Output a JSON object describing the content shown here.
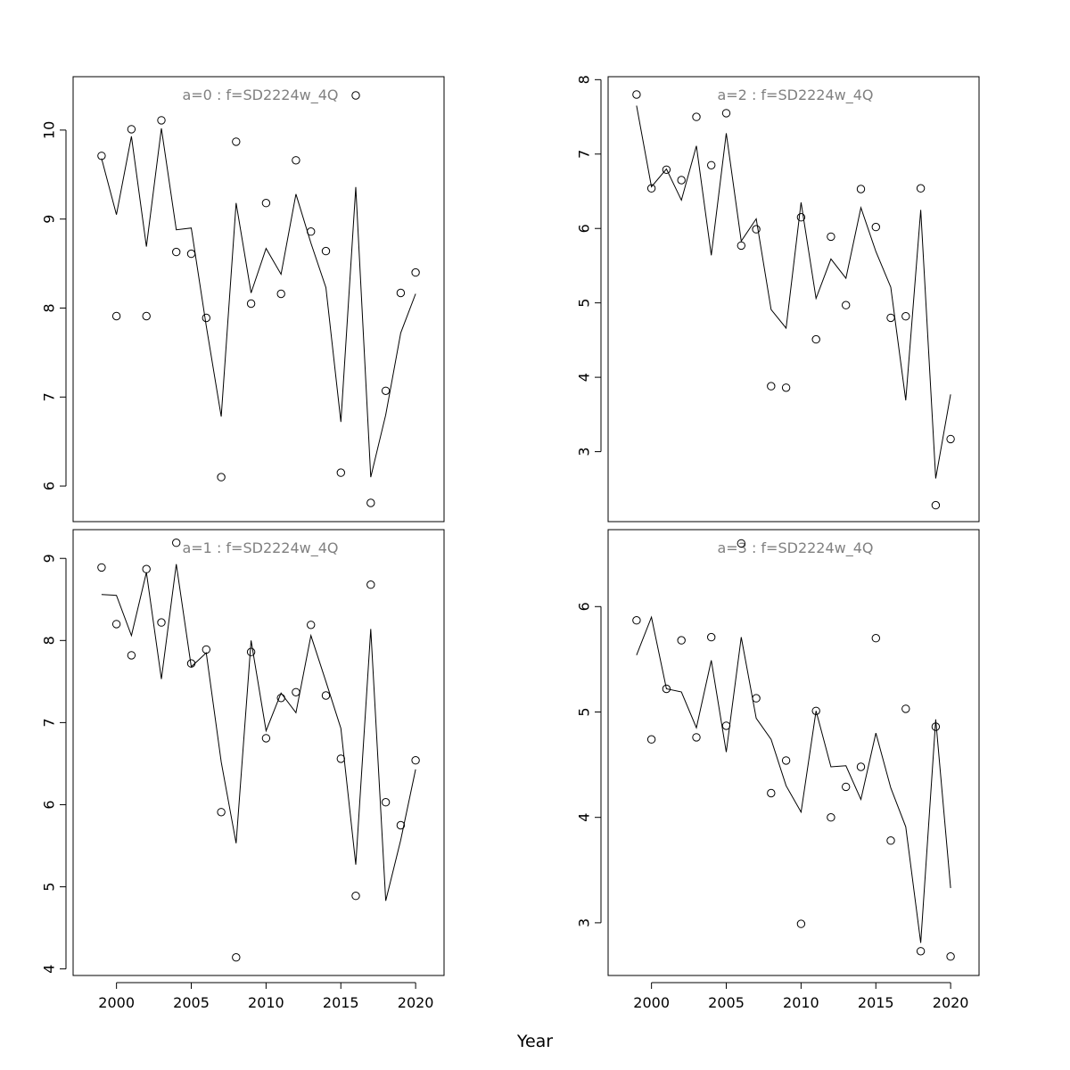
{
  "figure": {
    "xlabel": "Year"
  },
  "chart_data": [
    {
      "type": "line",
      "panel": "a0",
      "title": "a=0  :  f=SD2224w_4Q",
      "xlim": [
        1997.1,
        2021.9
      ],
      "ylim": [
        5.6,
        10.6
      ],
      "x_ticks": [
        2000,
        2005,
        2010,
        2015,
        2020
      ],
      "y_ticks": [
        6,
        7,
        8,
        9,
        10
      ],
      "show_x_ticks": false,
      "x": [
        1999,
        2000,
        2001,
        2002,
        2003,
        2004,
        2005,
        2006,
        2007,
        2008,
        2009,
        2010,
        2011,
        2012,
        2013,
        2014,
        2015,
        2016,
        2017,
        2018,
        2019,
        2020
      ],
      "series": [
        {
          "name": "",
          "style": "points",
          "values": [
            9.71,
            7.91,
            10.01,
            7.91,
            10.11,
            8.63,
            8.61,
            7.89,
            6.1,
            9.87,
            8.05,
            9.18,
            8.16,
            9.66,
            8.86,
            8.64,
            6.15,
            10.39,
            5.81,
            7.07,
            8.17,
            8.4
          ]
        },
        {
          "name": "",
          "style": "line",
          "values": [
            9.68,
            9.05,
            9.93,
            8.69,
            10.02,
            8.88,
            8.9,
            7.8,
            6.78,
            9.18,
            8.17,
            8.67,
            8.38,
            9.28,
            8.73,
            8.23,
            6.72,
            9.36,
            6.1,
            6.8,
            7.72,
            8.16
          ]
        }
      ]
    },
    {
      "type": "line",
      "panel": "a1",
      "title": "a=1  :  f=SD2224w_4Q",
      "xlim": [
        1997.1,
        2021.9
      ],
      "ylim": [
        3.92,
        9.35
      ],
      "x_ticks": [
        2000,
        2005,
        2010,
        2015,
        2020
      ],
      "y_ticks": [
        4,
        5,
        6,
        7,
        8,
        9
      ],
      "show_x_ticks": true,
      "x": [
        1999,
        2000,
        2001,
        2002,
        2003,
        2004,
        2005,
        2006,
        2007,
        2008,
        2009,
        2010,
        2011,
        2012,
        2013,
        2014,
        2015,
        2016,
        2017,
        2018,
        2019,
        2020
      ],
      "series": [
        {
          "name": "",
          "style": "points",
          "values": [
            8.89,
            8.2,
            7.82,
            8.87,
            8.22,
            9.19,
            7.72,
            7.89,
            5.91,
            4.14,
            7.86,
            6.81,
            7.3,
            7.37,
            8.19,
            7.33,
            6.56,
            4.89,
            8.68,
            6.03,
            5.75,
            6.54
          ]
        },
        {
          "name": "",
          "style": "line",
          "values": [
            8.56,
            8.55,
            8.06,
            8.83,
            7.53,
            8.93,
            7.68,
            7.85,
            6.52,
            5.53,
            8.0,
            6.9,
            7.36,
            7.12,
            8.06,
            7.5,
            6.93,
            5.27,
            8.14,
            4.83,
            5.57,
            6.43
          ]
        }
      ]
    },
    {
      "type": "line",
      "panel": "a2",
      "title": "a=2  :  f=SD2224w_4Q",
      "xlim": [
        1997.1,
        2021.9
      ],
      "ylim": [
        2.06,
        8.04
      ],
      "x_ticks": [
        2000,
        2005,
        2010,
        2015,
        2020
      ],
      "y_ticks": [
        3,
        4,
        5,
        6,
        7,
        8
      ],
      "show_x_ticks": false,
      "x": [
        1999,
        2000,
        2001,
        2002,
        2003,
        2004,
        2005,
        2006,
        2007,
        2008,
        2009,
        2010,
        2011,
        2012,
        2013,
        2014,
        2015,
        2016,
        2017,
        2018,
        2019,
        2020
      ],
      "series": [
        {
          "name": "",
          "style": "points",
          "values": [
            7.8,
            6.54,
            6.79,
            6.65,
            7.5,
            6.85,
            7.55,
            5.77,
            5.99,
            3.88,
            3.86,
            6.15,
            4.51,
            5.89,
            4.97,
            6.53,
            6.02,
            4.8,
            4.82,
            6.54,
            2.28,
            3.17
          ]
        },
        {
          "name": "",
          "style": "line",
          "values": [
            7.65,
            6.56,
            6.8,
            6.38,
            7.11,
            5.64,
            7.28,
            5.83,
            6.13,
            4.91,
            4.66,
            6.35,
            5.06,
            5.59,
            5.33,
            6.28,
            5.69,
            5.21,
            3.69,
            6.25,
            2.64,
            3.77
          ]
        }
      ]
    },
    {
      "type": "line",
      "panel": "a3",
      "title": "a=3  :  f=SD2224w_4Q",
      "xlim": [
        1997.1,
        2021.9
      ],
      "ylim": [
        2.5,
        6.73
      ],
      "x_ticks": [
        2000,
        2005,
        2010,
        2015,
        2020
      ],
      "y_ticks": [
        3,
        4,
        5,
        6
      ],
      "show_x_ticks": true,
      "x": [
        1999,
        2000,
        2001,
        2002,
        2003,
        2004,
        2005,
        2006,
        2007,
        2008,
        2009,
        2010,
        2011,
        2012,
        2013,
        2014,
        2015,
        2016,
        2017,
        2018,
        2019,
        2020
      ],
      "series": [
        {
          "name": "",
          "style": "points",
          "values": [
            5.87,
            4.74,
            5.22,
            5.68,
            4.76,
            5.71,
            4.87,
            6.6,
            5.13,
            4.23,
            4.54,
            2.99,
            5.01,
            4.0,
            4.29,
            4.48,
            5.7,
            3.78,
            5.03,
            2.73,
            4.86,
            2.68
          ]
        },
        {
          "name": "",
          "style": "line",
          "values": [
            5.54,
            5.9,
            5.22,
            5.19,
            4.85,
            5.49,
            4.62,
            5.71,
            4.94,
            4.74,
            4.3,
            4.05,
            5.01,
            4.48,
            4.49,
            4.17,
            4.8,
            4.28,
            3.91,
            2.81,
            4.93,
            3.33
          ]
        }
      ]
    }
  ]
}
